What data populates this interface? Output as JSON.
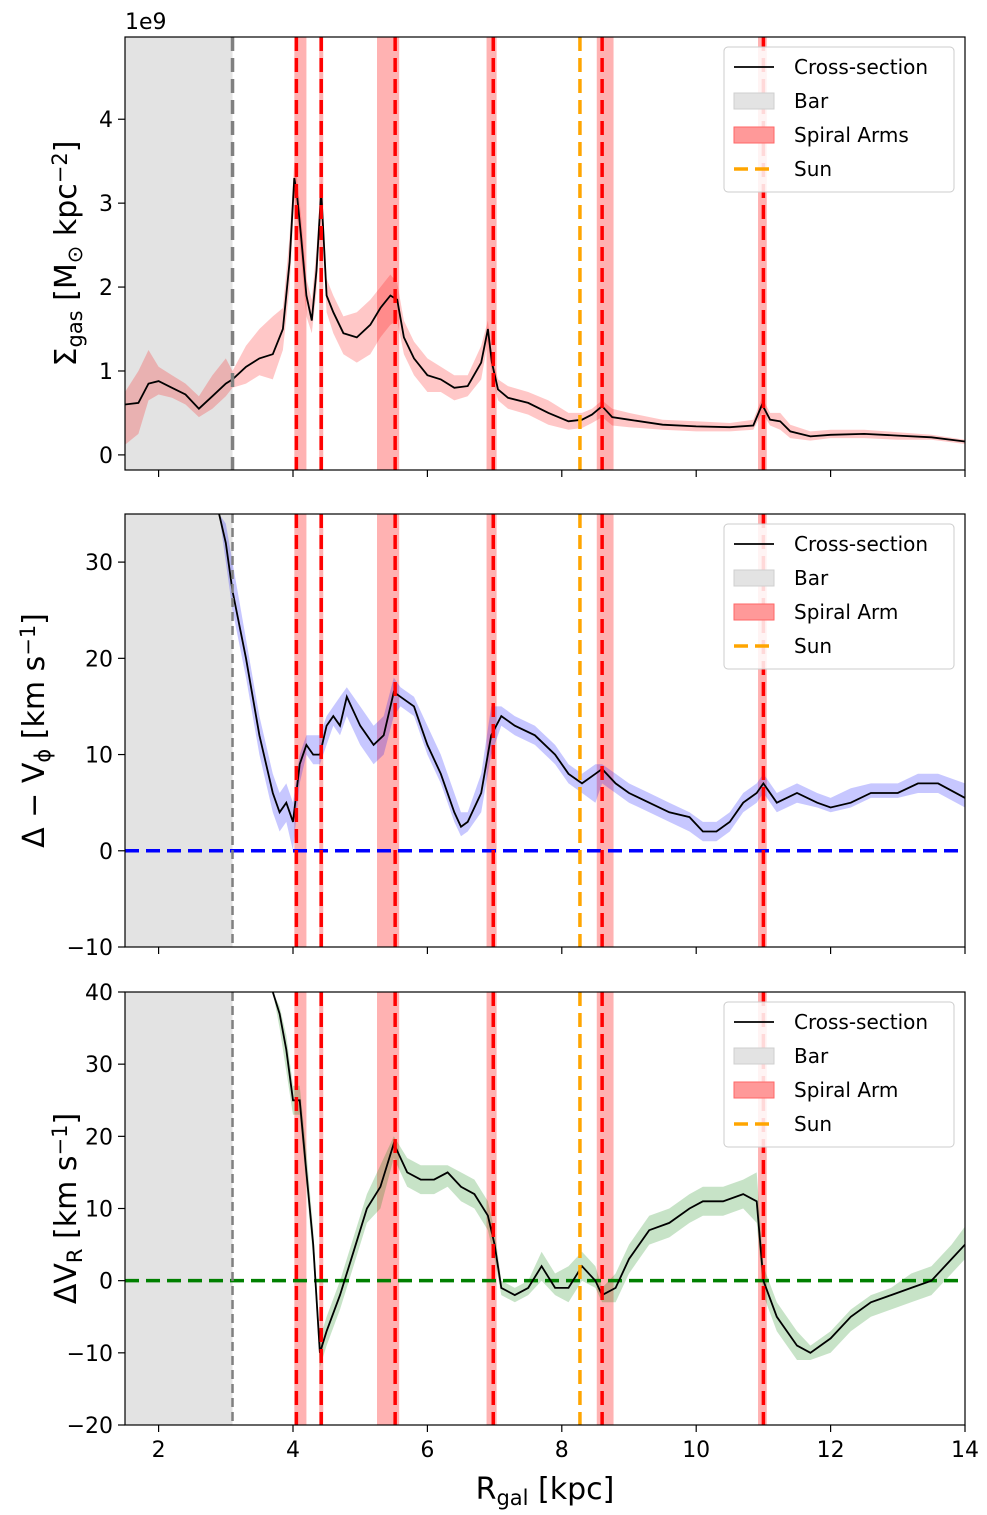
{
  "chart_data": [
    {
      "type": "line",
      "panel": "top",
      "ylabel_parts": {
        "main": "Σ",
        "sub": "gas",
        "unit_pre": " [M",
        "unit_sub": "⊙",
        "unit_mid": " kpc",
        "unit_sup": "−2",
        "unit_post": "]"
      },
      "ylabel": "Σgas [M⊙ kpc−2]",
      "offset_text": "1e9",
      "xlim": [
        1.5,
        14
      ],
      "ylim": [
        -0.18,
        4.98
      ],
      "yticks": [
        0,
        1,
        2,
        3,
        4
      ],
      "ytick_labels": [
        "0",
        "1",
        "2",
        "3",
        "4"
      ],
      "band_color": "#ff0000",
      "line_color": "#000000",
      "zero_line": null,
      "legend": {
        "location": "top-right",
        "entries": [
          "Cross-section",
          "Bar",
          "Spiral Arms",
          "Sun"
        ]
      },
      "cross_section": {
        "x": [
          1.5,
          1.7,
          1.85,
          2.0,
          2.2,
          2.4,
          2.6,
          2.8,
          3.0,
          3.1,
          3.3,
          3.5,
          3.7,
          3.85,
          3.95,
          4.02,
          4.06,
          4.12,
          4.2,
          4.28,
          4.35,
          4.42,
          4.5,
          4.6,
          4.75,
          4.95,
          5.15,
          5.3,
          5.45,
          5.55,
          5.65,
          5.8,
          6.0,
          6.2,
          6.4,
          6.6,
          6.8,
          6.9,
          6.96,
          7.05,
          7.2,
          7.5,
          7.8,
          8.1,
          8.3,
          8.45,
          8.6,
          8.75,
          9.0,
          9.5,
          10.0,
          10.5,
          10.85,
          10.98,
          11.1,
          11.25,
          11.4,
          11.7,
          12.0,
          12.5,
          13.0,
          13.5,
          14.0
        ],
        "y": [
          0.6,
          0.62,
          0.85,
          0.88,
          0.8,
          0.72,
          0.55,
          0.7,
          0.85,
          0.9,
          1.05,
          1.15,
          1.2,
          1.5,
          2.3,
          3.3,
          3.1,
          2.6,
          1.9,
          1.6,
          2.2,
          3.15,
          1.9,
          1.7,
          1.45,
          1.4,
          1.55,
          1.75,
          1.9,
          1.85,
          1.4,
          1.15,
          0.95,
          0.9,
          0.8,
          0.82,
          1.1,
          1.5,
          1.1,
          0.78,
          0.68,
          0.62,
          0.5,
          0.4,
          0.42,
          0.48,
          0.58,
          0.45,
          0.42,
          0.36,
          0.34,
          0.33,
          0.35,
          0.6,
          0.42,
          0.4,
          0.28,
          0.22,
          0.24,
          0.25,
          0.23,
          0.21,
          0.16
        ]
      },
      "uncertainty": {
        "x": [
          1.5,
          1.7,
          1.85,
          2.0,
          2.2,
          2.4,
          2.6,
          2.8,
          3.0,
          3.1,
          3.3,
          3.5,
          3.7,
          3.85,
          3.95,
          4.02,
          4.06,
          4.12,
          4.2,
          4.28,
          4.35,
          4.42,
          4.5,
          4.6,
          4.75,
          4.95,
          5.15,
          5.3,
          5.45,
          5.55,
          5.65,
          5.8,
          6.0,
          6.2,
          6.4,
          6.6,
          6.8,
          6.9,
          6.96,
          7.05,
          7.2,
          7.5,
          7.8,
          8.1,
          8.3,
          8.45,
          8.6,
          8.75,
          9.0,
          9.5,
          10.0,
          10.5,
          10.85,
          10.98,
          11.1,
          11.25,
          11.4,
          11.7,
          12.0,
          12.5,
          13.0,
          13.5,
          14.0
        ],
        "upper": [
          0.75,
          1.0,
          1.25,
          1.05,
          0.95,
          0.85,
          0.7,
          0.95,
          1.15,
          1.0,
          1.3,
          1.5,
          1.65,
          1.75,
          2.6,
          3.5,
          3.3,
          2.85,
          2.1,
          1.85,
          2.45,
          3.3,
          2.1,
          1.9,
          1.65,
          1.7,
          1.85,
          2.0,
          2.15,
          2.05,
          1.6,
          1.35,
          1.15,
          1.05,
          0.95,
          0.95,
          1.3,
          1.6,
          1.2,
          0.9,
          0.82,
          0.75,
          0.65,
          0.5,
          0.5,
          0.55,
          0.65,
          0.55,
          0.5,
          0.42,
          0.4,
          0.38,
          0.42,
          0.68,
          0.5,
          0.5,
          0.36,
          0.28,
          0.3,
          0.3,
          0.27,
          0.24,
          0.18
        ],
        "lower": [
          0.12,
          0.25,
          0.65,
          0.72,
          0.68,
          0.6,
          0.45,
          0.55,
          0.7,
          0.8,
          0.85,
          0.95,
          0.9,
          1.25,
          2.0,
          3.05,
          2.85,
          2.35,
          1.65,
          1.45,
          1.95,
          2.95,
          1.7,
          1.45,
          1.2,
          1.1,
          1.2,
          1.4,
          1.55,
          1.6,
          1.2,
          0.95,
          0.75,
          0.75,
          0.65,
          0.7,
          0.9,
          1.35,
          0.95,
          0.65,
          0.55,
          0.48,
          0.36,
          0.3,
          0.32,
          0.38,
          0.45,
          0.35,
          0.33,
          0.3,
          0.28,
          0.28,
          0.3,
          0.5,
          0.35,
          0.3,
          0.2,
          0.17,
          0.2,
          0.2,
          0.18,
          0.18,
          0.13
        ]
      }
    },
    {
      "type": "line",
      "panel": "middle",
      "ylabel_parts": {
        "main": "Δ − V",
        "sub": "ϕ",
        "unit_pre": " [km s",
        "unit_sup": "−1",
        "unit_post": "]"
      },
      "ylabel": "Δ − Vϕ [km s−1]",
      "xlim": [
        1.5,
        14
      ],
      "ylim": [
        -10,
        35
      ],
      "yticks": [
        -10,
        0,
        10,
        20,
        30
      ],
      "ytick_labels": [
        "−10",
        "0",
        "10",
        "20",
        "30"
      ],
      "band_color": "#0000ff",
      "line_color": "#000000",
      "zero_line": {
        "y": 0,
        "color": "#0000ff"
      },
      "legend": {
        "location": "top-right",
        "entries": [
          "Cross-section",
          "Bar",
          "Spiral Arm",
          "Sun"
        ]
      },
      "cross_section": {
        "x": [
          2.9,
          3.0,
          3.1,
          3.3,
          3.5,
          3.7,
          3.8,
          3.9,
          4.0,
          4.1,
          4.2,
          4.3,
          4.4,
          4.5,
          4.6,
          4.7,
          4.8,
          5.0,
          5.2,
          5.35,
          5.5,
          5.6,
          5.8,
          6.0,
          6.2,
          6.4,
          6.5,
          6.6,
          6.8,
          6.95,
          7.1,
          7.3,
          7.6,
          7.9,
          8.1,
          8.3,
          8.5,
          8.6,
          8.8,
          9.0,
          9.3,
          9.6,
          9.9,
          10.1,
          10.3,
          10.5,
          10.7,
          10.9,
          11.0,
          11.2,
          11.5,
          11.8,
          12.0,
          12.3,
          12.6,
          13.0,
          13.3,
          13.6,
          14.0
        ],
        "y": [
          35,
          32,
          27,
          20,
          12,
          6,
          4,
          5,
          3,
          9,
          11,
          10,
          10,
          13,
          14,
          13,
          16,
          13,
          11,
          12,
          16.5,
          16,
          15,
          11,
          8,
          4,
          2.5,
          3,
          6,
          12,
          14,
          13,
          12,
          10,
          8,
          7,
          8,
          8.5,
          7,
          6,
          5,
          4,
          3.5,
          2,
          2,
          3,
          5,
          6,
          7,
          5,
          6,
          5,
          4.5,
          5,
          6,
          6,
          7,
          7,
          5.5
        ],
        "upper": [
          35,
          34,
          30,
          22,
          14,
          8,
          6,
          7,
          5,
          10,
          12,
          12,
          12,
          14,
          15,
          16,
          17,
          15,
          13,
          14,
          18,
          17,
          16,
          13,
          10,
          6,
          4,
          4,
          8,
          15,
          15,
          14,
          13,
          11,
          9,
          8,
          9,
          9,
          8,
          7,
          6,
          5,
          4,
          3,
          3,
          4,
          6,
          7,
          8,
          6,
          7,
          6,
          5.5,
          6.5,
          7,
          7,
          8,
          8,
          7
        ],
        "lower": [
          35,
          30,
          25,
          18,
          10,
          4,
          2,
          3,
          0,
          7,
          10,
          9,
          9,
          11,
          13,
          12,
          14,
          11,
          9,
          10,
          14,
          15,
          14,
          10,
          7,
          3,
          1.5,
          2,
          4,
          10,
          13,
          12,
          11,
          9,
          7,
          6,
          5,
          7,
          6,
          5,
          4,
          3,
          2,
          1,
          1,
          2,
          4,
          5,
          6,
          4,
          5,
          4.5,
          4,
          4.5,
          5.5,
          5.5,
          6,
          6,
          4.5
        ]
      }
    },
    {
      "type": "line",
      "panel": "bottom",
      "ylabel_parts": {
        "main": "ΔV",
        "sub": "R",
        "unit_pre": " [km s",
        "unit_sup": "−1",
        "unit_post": "]"
      },
      "ylabel": "ΔVR [km s−1]",
      "xlabel_parts": {
        "main": "R",
        "sub": "gal",
        "post": " [kpc]"
      },
      "xlabel": "Rgal [kpc]",
      "xlim": [
        1.5,
        14
      ],
      "ylim": [
        -20,
        40
      ],
      "xticks": [
        2,
        4,
        6,
        8,
        10,
        12,
        14
      ],
      "xtick_labels": [
        "2",
        "4",
        "6",
        "8",
        "10",
        "12",
        "14"
      ],
      "yticks": [
        -20,
        -10,
        0,
        10,
        20,
        30,
        40
      ],
      "ytick_labels": [
        "−20",
        "−10",
        "0",
        "10",
        "20",
        "30",
        "40"
      ],
      "band_color": "#008000",
      "line_color": "#000000",
      "zero_line": {
        "y": 0,
        "color": "#008000"
      },
      "legend": {
        "location": "top-right",
        "entries": [
          "Cross-section",
          "Bar",
          "Spiral Arm",
          "Sun"
        ]
      },
      "cross_section": {
        "x": [
          3.7,
          3.8,
          3.9,
          4.0,
          4.1,
          4.2,
          4.3,
          4.4,
          4.5,
          4.7,
          4.9,
          5.1,
          5.3,
          5.5,
          5.7,
          5.9,
          6.1,
          6.3,
          6.5,
          6.7,
          6.9,
          7.0,
          7.1,
          7.3,
          7.5,
          7.7,
          7.9,
          8.1,
          8.3,
          8.5,
          8.6,
          8.8,
          9.0,
          9.3,
          9.6,
          9.9,
          10.1,
          10.4,
          10.7,
          10.9,
          11.0,
          11.2,
          11.5,
          11.7,
          12.0,
          12.3,
          12.6,
          12.9,
          13.2,
          13.5,
          13.8,
          14.0
        ],
        "y": [
          40,
          37,
          32,
          25,
          25,
          15,
          5,
          -10,
          -7,
          -2,
          4,
          10,
          13,
          19,
          15,
          14,
          14,
          15,
          13,
          12,
          9,
          5,
          -1,
          -2,
          -1,
          2,
          -1,
          -1,
          2,
          0,
          -2,
          -1,
          3,
          7,
          8,
          10,
          11,
          11,
          12,
          11,
          0,
          -5,
          -9,
          -10,
          -8,
          -5,
          -3,
          -2,
          -1,
          0,
          3,
          5
        ],
        "upper": [
          40,
          38,
          34,
          27,
          27,
          18,
          7,
          -8,
          -5,
          0,
          6,
          12,
          16,
          20,
          17,
          16,
          16,
          16,
          15,
          14,
          11,
          7,
          0,
          -1,
          0,
          4,
          1,
          2,
          4,
          2,
          -1,
          1,
          5,
          9,
          10,
          12,
          13,
          13,
          14,
          15,
          2,
          -3,
          -7,
          -9,
          -7,
          -4,
          -2,
          -1,
          1,
          2,
          5,
          7.5
        ],
        "lower": [
          40,
          35,
          29,
          23,
          23,
          13,
          3,
          -12,
          -9,
          -4,
          2,
          8,
          10,
          17,
          13,
          12,
          12,
          13,
          11,
          10,
          7,
          3,
          -2,
          -3,
          -2,
          0,
          -2,
          -3,
          0,
          -1,
          -3,
          -3,
          1,
          5,
          6,
          8,
          9,
          9,
          10,
          8,
          -2,
          -7,
          -11,
          -11,
          -10,
          -7,
          -5,
          -4,
          -3,
          -2,
          1,
          3
        ]
      }
    }
  ],
  "bar_region": {
    "x_start": 1.5,
    "x_end": 3.1,
    "fill_color": "#e3e3e3",
    "edge_line_color": "#808080"
  },
  "spiral_arms": [
    {
      "center": 4.05,
      "band": [
        4.02,
        4.2
      ]
    },
    {
      "center": 4.42,
      "band": [
        4.39,
        4.45
      ]
    },
    {
      "center": 5.52,
      "band": [
        5.25,
        5.58
      ]
    },
    {
      "center": 6.98,
      "band": [
        6.88,
        7.03
      ]
    },
    {
      "center": 8.6,
      "band": [
        8.52,
        8.77
      ]
    },
    {
      "center": 11.0,
      "band": [
        10.92,
        11.05
      ]
    }
  ],
  "arm_line_color": "#ff0000",
  "sun": {
    "x": 8.27,
    "color": "#ffa500"
  }
}
